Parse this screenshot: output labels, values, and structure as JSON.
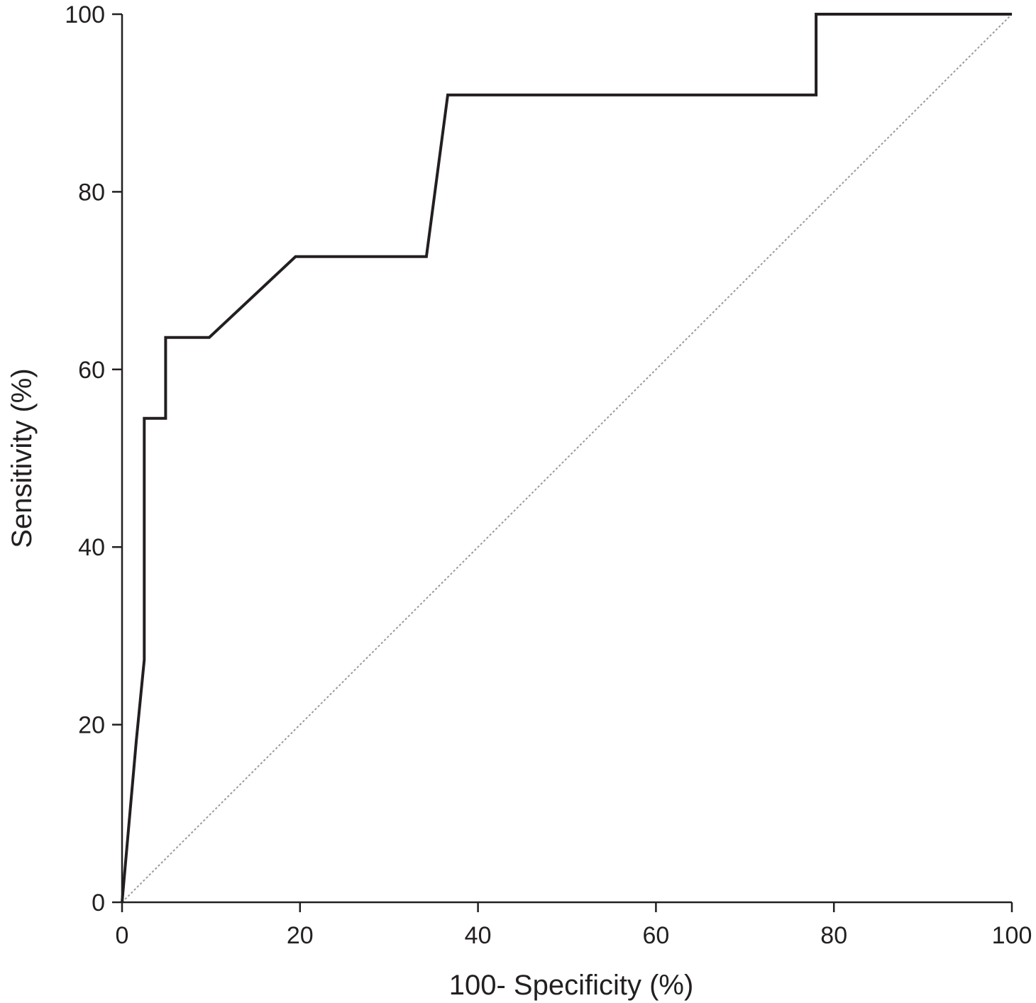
{
  "chart_data": {
    "type": "line",
    "title": "",
    "xlabel": "100- Specificity (%)",
    "ylabel": "Sensitivity (%)",
    "xlim": [
      0,
      100
    ],
    "ylim": [
      0,
      100
    ],
    "xticks": [
      0,
      20,
      40,
      60,
      80,
      100
    ],
    "yticks": [
      0,
      20,
      40,
      60,
      80,
      100
    ],
    "grid": false,
    "legend": "none",
    "series": [
      {
        "style": "solid",
        "color": "#231f20",
        "x": [
          0,
          1.6,
          2.5,
          2.5,
          2.5,
          4.9,
          4.9,
          9.8,
          19.5,
          34.2,
          36.6,
          78.0,
          78.0,
          100
        ],
        "y": [
          0,
          18.2,
          27.3,
          45.5,
          54.5,
          54.5,
          63.6,
          63.6,
          72.7,
          72.7,
          90.9,
          90.9,
          100,
          100
        ]
      },
      {
        "style": "dotted",
        "color": "#9a9a9a",
        "x": [
          0,
          100
        ],
        "y": [
          0,
          100
        ]
      }
    ]
  }
}
